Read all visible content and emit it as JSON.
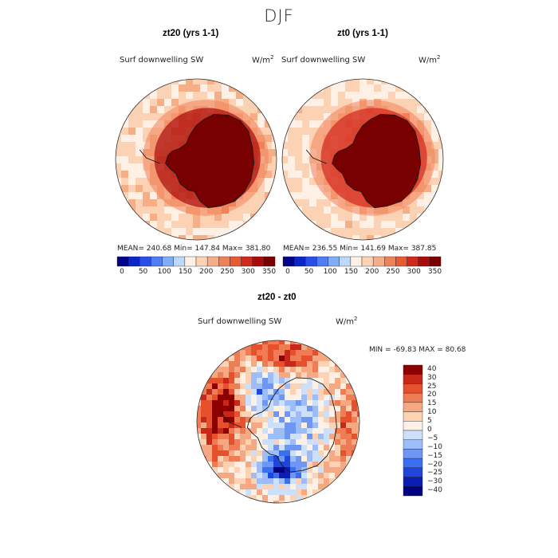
{
  "figure": {
    "season": "DJF"
  },
  "colors": {
    "seq_scale": [
      "#00008b",
      "#0a28c8",
      "#2850e6",
      "#507ef0",
      "#82aaf5",
      "#bed8fa",
      "#fff0e6",
      "#fcd2b4",
      "#f5ae86",
      "#f0825a",
      "#e65a32",
      "#d2281e",
      "#aa0a0a",
      "#780000"
    ],
    "diff_scale": [
      "#000080",
      "#0a1eb4",
      "#1e46dc",
      "#3c6ef0",
      "#6e96f5",
      "#9cbdf8",
      "#cde0fb",
      "#fff0e6",
      "#fcd2b4",
      "#f5a882",
      "#ee7c55",
      "#e6502d",
      "#c8281a",
      "#8c0000"
    ],
    "land_outline": "#1a1a1a",
    "circle_edge": "#333333"
  },
  "chart_data": [
    {
      "type": "heatmap",
      "panel": "left",
      "title": "zt20 (yrs 1-1)",
      "variable": "Surf downwelling SW",
      "units": "W/m",
      "units_exp": "2",
      "stats": "MEAN= 240.68   Min= 147.84   Max= 381.80",
      "mean": 240.68,
      "min": 147.84,
      "max": 381.8,
      "colorbar_ticks": [
        "0",
        "50",
        "100",
        "150",
        "200",
        "250",
        "300",
        "350"
      ],
      "colorbar_range": [
        0,
        350
      ],
      "levels_count": 14,
      "field": {
        "land_value": 375,
        "inner_ring": 300,
        "mid_ring": 245,
        "outer_value": 185
      }
    },
    {
      "type": "heatmap",
      "panel": "right",
      "title": "zt0 (yrs 1-1)",
      "variable": "Surf downwelling SW",
      "units": "W/m",
      "units_exp": "2",
      "stats": "MEAN= 236.55   Min= 141.69   Max= 387.85",
      "mean": 236.55,
      "min": 141.69,
      "max": 387.85,
      "colorbar_ticks": [
        "0",
        "50",
        "100",
        "150",
        "200",
        "250",
        "300",
        "350"
      ],
      "colorbar_range": [
        0,
        350
      ],
      "levels_count": 14,
      "field": {
        "land_value": 380,
        "inner_ring": 295,
        "mid_ring": 240,
        "outer_value": 178
      }
    },
    {
      "type": "heatmap",
      "panel": "bottom",
      "title": "zt20 - zt0",
      "variable": "Surf downwelling SW",
      "units": "W/m",
      "units_exp": "2",
      "stats": "MIN = -69.83 MAX =  80.68",
      "min": -69.83,
      "max": 80.68,
      "colorbar_ticks": [
        "40",
        "30",
        "25",
        "20",
        "15",
        "10",
        "5",
        "0",
        "−5",
        "−10",
        "−15",
        "−20",
        "−25",
        "−30",
        "−40"
      ],
      "levels": [
        -40,
        -30,
        -25,
        -20,
        -15,
        -10,
        -5,
        0,
        5,
        10,
        15,
        20,
        25,
        30,
        40
      ]
    }
  ]
}
